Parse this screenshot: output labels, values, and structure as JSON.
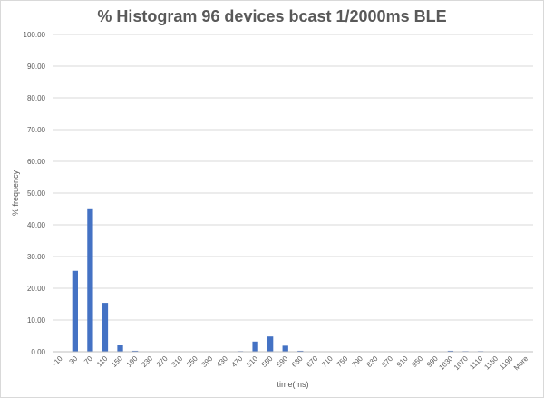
{
  "chart_data": {
    "type": "bar",
    "title": "% Histogram 96 devices bcast 1/2000ms BLE",
    "xlabel": "time(ms)",
    "ylabel": "% frequency",
    "ylim": [
      0,
      100
    ],
    "yticks": [
      "0.00",
      "10.00",
      "20.00",
      "30.00",
      "40.00",
      "50.00",
      "60.00",
      "70.00",
      "80.00",
      "90.00",
      "100.00"
    ],
    "grid": true,
    "bar_color": "#4472c4",
    "categories": [
      "-10",
      "30",
      "70",
      "110",
      "150",
      "190",
      "230",
      "270",
      "310",
      "350",
      "390",
      "430",
      "470",
      "510",
      "550",
      "590",
      "630",
      "670",
      "710",
      "750",
      "790",
      "830",
      "870",
      "910",
      "950",
      "990",
      "1030",
      "1070",
      "1110",
      "1150",
      "1190",
      "More"
    ],
    "values": [
      0,
      25.5,
      45.2,
      15.4,
      2.1,
      0.3,
      0,
      0,
      0,
      0,
      0,
      0,
      0.2,
      3.2,
      4.8,
      1.9,
      0.3,
      0,
      0,
      0,
      0,
      0,
      0,
      0,
      0,
      0.1,
      0.3,
      0.2,
      0.2,
      0,
      0,
      0
    ]
  }
}
